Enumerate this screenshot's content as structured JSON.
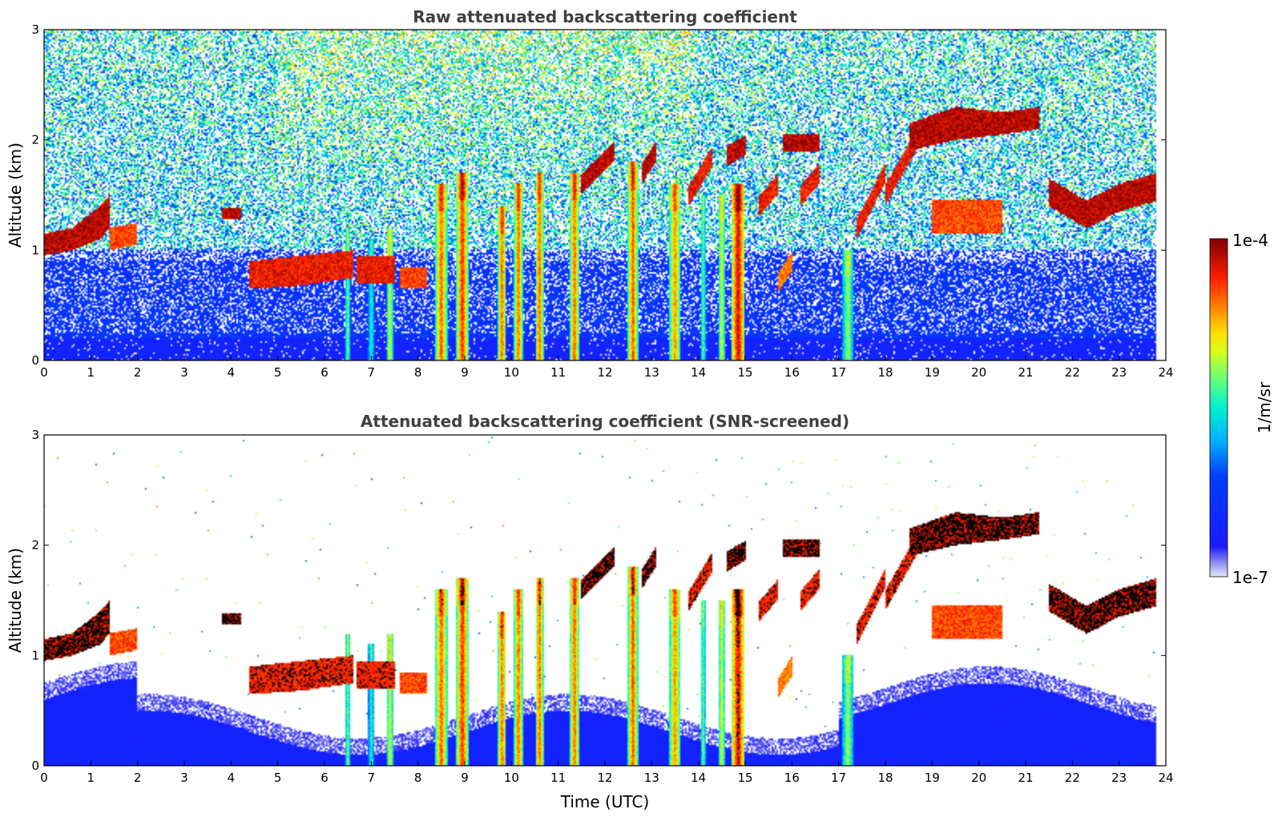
{
  "chart_data": [
    {
      "type": "heatmap",
      "title": "Raw attenuated backscattering coefficient",
      "xlabel": "",
      "ylabel": "Altitude (km)",
      "xlim": [
        0,
        24
      ],
      "ylim": [
        0,
        3
      ],
      "x_ticks": [
        0,
        1,
        2,
        3,
        4,
        5,
        6,
        7,
        8,
        9,
        10,
        11,
        12,
        13,
        14,
        15,
        16,
        17,
        18,
        19,
        20,
        21,
        22,
        23,
        24
      ],
      "y_ticks": [
        0,
        1,
        2,
        3
      ],
      "screened": false,
      "background_noise": true,
      "features": [
        {
          "kind": "layer",
          "x": [
            0.0,
            0.6,
            1.2,
            1.4
          ],
          "base": [
            0.95,
            1.0,
            1.1,
            1.2
          ],
          "top": [
            1.15,
            1.2,
            1.4,
            1.5
          ],
          "value": 0.95
        },
        {
          "kind": "layer",
          "x": [
            1.4,
            2.0
          ],
          "base": [
            1.0,
            1.05
          ],
          "top": [
            1.2,
            1.25
          ],
          "value": 0.85
        },
        {
          "kind": "layer",
          "x": [
            3.8,
            4.2
          ],
          "base": [
            1.28,
            1.28
          ],
          "top": [
            1.38,
            1.38
          ],
          "value": 0.95
        },
        {
          "kind": "layer",
          "x": [
            4.4,
            5.5,
            6.6
          ],
          "base": [
            0.65,
            0.68,
            0.75
          ],
          "top": [
            0.9,
            0.95,
            1.0
          ],
          "value": 0.9
        },
        {
          "kind": "layer",
          "x": [
            6.7,
            7.5
          ],
          "base": [
            0.7,
            0.7
          ],
          "top": [
            0.95,
            0.95
          ],
          "value": 0.9
        },
        {
          "kind": "layer",
          "x": [
            7.6,
            8.2
          ],
          "base": [
            0.65,
            0.65
          ],
          "top": [
            0.85,
            0.85
          ],
          "value": 0.85
        },
        {
          "kind": "layer",
          "x": [
            15.8,
            16.6
          ],
          "base": [
            1.9,
            1.9
          ],
          "top": [
            2.05,
            2.05
          ],
          "value": 0.95
        },
        {
          "kind": "layer",
          "x": [
            18.5,
            19.5,
            20.5,
            21.3
          ],
          "base": [
            1.9,
            2.0,
            2.05,
            2.1
          ],
          "top": [
            2.15,
            2.3,
            2.25,
            2.3
          ],
          "value": 0.95
        },
        {
          "kind": "layer",
          "x": [
            19.0,
            20.5
          ],
          "base": [
            1.15,
            1.15
          ],
          "top": [
            1.45,
            1.45
          ],
          "value": 0.85
        },
        {
          "kind": "layer",
          "x": [
            21.5,
            22.3,
            23.0,
            23.8
          ],
          "base": [
            1.4,
            1.2,
            1.35,
            1.45
          ],
          "top": [
            1.65,
            1.45,
            1.6,
            1.7
          ],
          "value": 0.95
        },
        {
          "kind": "column",
          "x": 6.5,
          "w": 0.12,
          "top": 1.2,
          "value": 0.6
        },
        {
          "kind": "column",
          "x": 7.0,
          "w": 0.12,
          "top": 1.1,
          "value": 0.55
        },
        {
          "kind": "column",
          "x": 7.4,
          "w": 0.15,
          "top": 1.2,
          "value": 0.7
        },
        {
          "kind": "column",
          "x": 8.5,
          "w": 0.25,
          "top": 1.6,
          "value": 0.85
        },
        {
          "kind": "column",
          "x": 8.95,
          "w": 0.25,
          "top": 1.7,
          "value": 0.9
        },
        {
          "kind": "column",
          "x": 9.8,
          "w": 0.18,
          "top": 1.4,
          "value": 0.85
        },
        {
          "kind": "column",
          "x": 10.15,
          "w": 0.18,
          "top": 1.6,
          "value": 0.85
        },
        {
          "kind": "column",
          "x": 10.6,
          "w": 0.18,
          "top": 1.7,
          "value": 0.85
        },
        {
          "kind": "column",
          "x": 11.35,
          "w": 0.2,
          "top": 1.7,
          "value": 0.85
        },
        {
          "kind": "column",
          "x": 12.6,
          "w": 0.22,
          "top": 1.8,
          "value": 0.85
        },
        {
          "kind": "column",
          "x": 13.5,
          "w": 0.25,
          "top": 1.6,
          "value": 0.8
        },
        {
          "kind": "column",
          "x": 14.1,
          "w": 0.12,
          "top": 1.5,
          "value": 0.6
        },
        {
          "kind": "column",
          "x": 14.5,
          "w": 0.15,
          "top": 1.5,
          "value": 0.7
        },
        {
          "kind": "column",
          "x": 14.85,
          "w": 0.3,
          "top": 1.6,
          "value": 0.95
        },
        {
          "kind": "column",
          "x": 17.2,
          "w": 0.22,
          "top": 1.0,
          "value": 0.65
        },
        {
          "kind": "streak",
          "x": [
            11.5,
            12.2
          ],
          "y": [
            1.6,
            1.9
          ],
          "value": 0.95
        },
        {
          "kind": "streak",
          "x": [
            12.8,
            13.1
          ],
          "y": [
            1.7,
            1.9
          ],
          "value": 0.95
        },
        {
          "kind": "streak",
          "x": [
            13.8,
            14.3
          ],
          "y": [
            1.5,
            1.85
          ],
          "value": 0.9
        },
        {
          "kind": "streak",
          "x": [
            14.6,
            15.0
          ],
          "y": [
            1.85,
            1.95
          ],
          "value": 0.95
        },
        {
          "kind": "streak",
          "x": [
            15.3,
            15.7
          ],
          "y": [
            1.4,
            1.6
          ],
          "value": 0.9
        },
        {
          "kind": "streak",
          "x": [
            16.2,
            16.6
          ],
          "y": [
            1.5,
            1.7
          ],
          "value": 0.9
        },
        {
          "kind": "streak",
          "x": [
            17.4,
            18.0
          ],
          "y": [
            1.2,
            1.7
          ],
          "value": 0.9
        },
        {
          "kind": "streak",
          "x": [
            18.0,
            18.8
          ],
          "y": [
            1.5,
            2.1
          ],
          "value": 0.9
        },
        {
          "kind": "streak",
          "x": [
            15.7,
            16.0
          ],
          "y": [
            0.7,
            0.9
          ],
          "value": 0.8
        }
      ]
    },
    {
      "type": "heatmap",
      "title": "Attenuated backscattering coefficient (SNR-screened)",
      "xlabel": "Time (UTC)",
      "ylabel": "Altitude (km)",
      "xlim": [
        0,
        24
      ],
      "ylim": [
        0,
        3
      ],
      "x_ticks": [
        0,
        1,
        2,
        3,
        4,
        5,
        6,
        7,
        8,
        9,
        10,
        11,
        12,
        13,
        14,
        15,
        16,
        17,
        18,
        19,
        20,
        21,
        22,
        23,
        24
      ],
      "y_ticks": [
        0,
        1,
        2,
        3
      ],
      "screened": true,
      "background_noise": false,
      "features": "same as raw panel"
    }
  ],
  "colorbar": {
    "label": "1/m/sr",
    "max_label": "1e-4",
    "min_label": "1e-7",
    "scale": "log",
    "colormap": "jet"
  }
}
